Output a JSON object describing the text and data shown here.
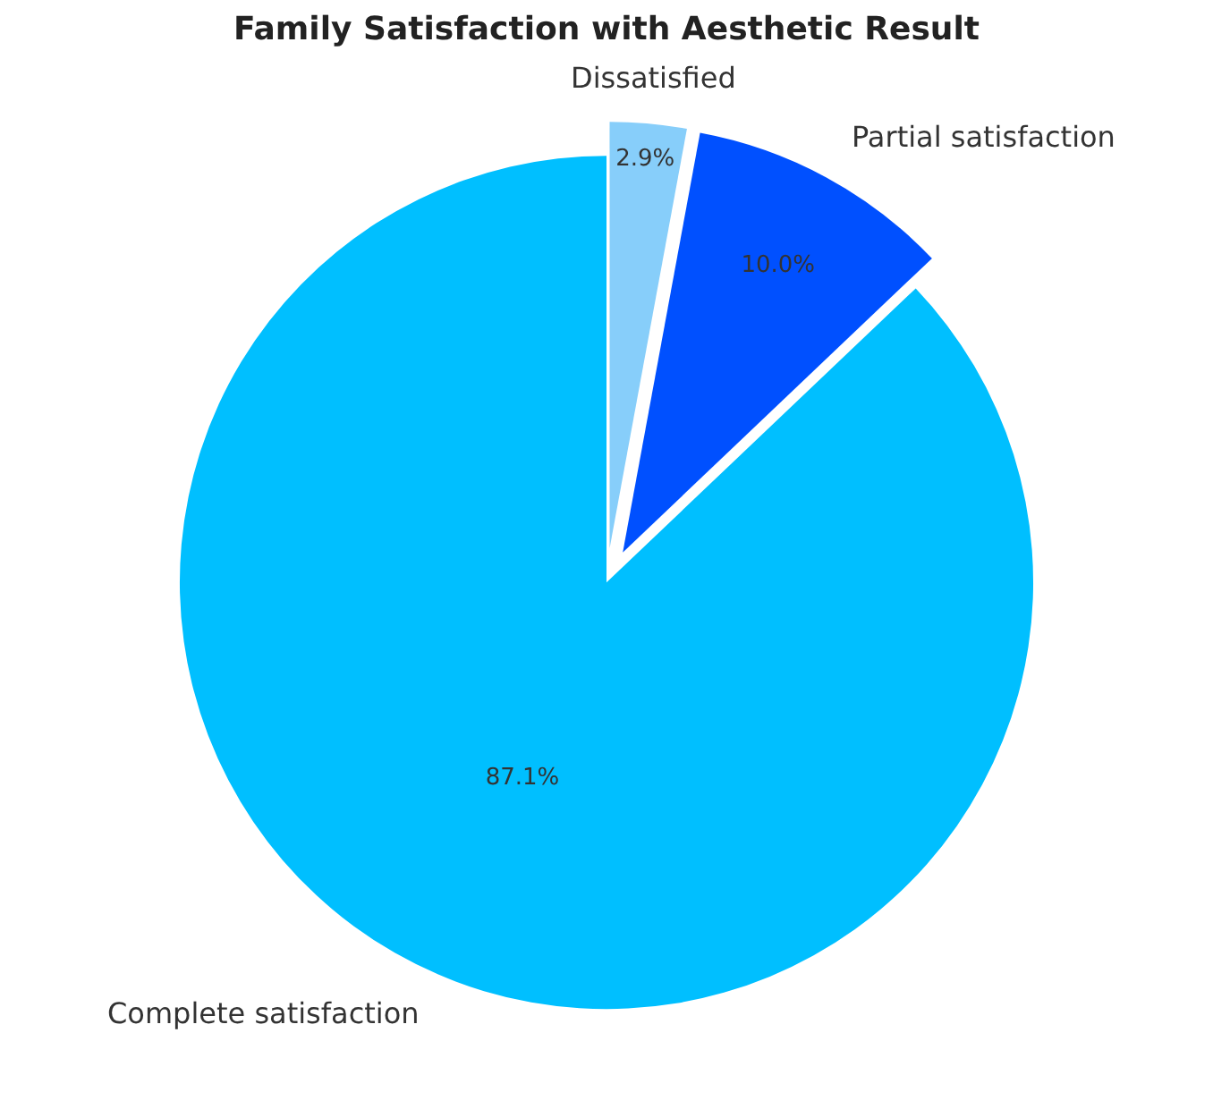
{
  "chart_data": {
    "type": "pie",
    "title": "Family Satisfaction with Aesthetic Result",
    "categories": [
      "Complete satisfaction",
      "Partial satisfaction",
      "Dissatisfied"
    ],
    "values": [
      87.1,
      10.0,
      2.9
    ],
    "value_labels": [
      "87.1%",
      "10.0%",
      "2.9%"
    ],
    "colors": [
      "#00bfff",
      "#0050ff",
      "#87cefa"
    ],
    "legend": false
  }
}
